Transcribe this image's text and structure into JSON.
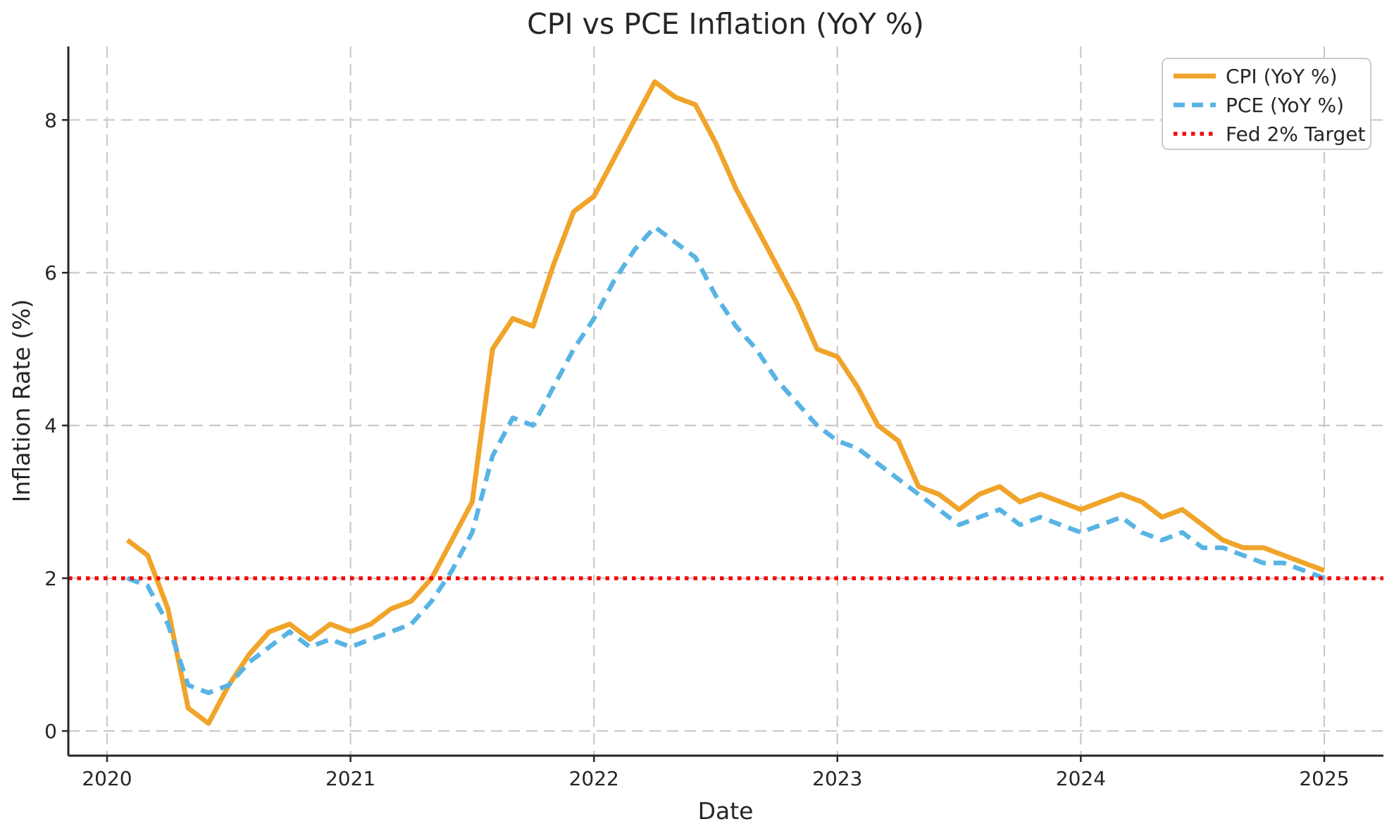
{
  "title": "CPI vs PCE Inflation (YoY %)",
  "chart_data": {
    "type": "line",
    "title": "CPI vs PCE Inflation (YoY %)",
    "xlabel": "Date",
    "ylabel": "Inflation Rate (%)",
    "grid": true,
    "background": "#ffffff",
    "x_tick_labels": [
      "2020",
      "2021",
      "2022",
      "2023",
      "2024",
      "2025"
    ],
    "x_tick_years": [
      2020,
      2021,
      2022,
      2023,
      2024,
      2025
    ],
    "y_tick_labels": [
      "0",
      "2",
      "4",
      "6",
      "8"
    ],
    "y_ticks": [
      0,
      2,
      4,
      6,
      8
    ],
    "ylim": [
      -0.32,
      8.92
    ],
    "xlim_years": [
      2019.84,
      2025.25
    ],
    "x_months": [
      "2020-01",
      "2020-02",
      "2020-03",
      "2020-04",
      "2020-05",
      "2020-06",
      "2020-07",
      "2020-08",
      "2020-09",
      "2020-10",
      "2020-11",
      "2020-12",
      "2021-01",
      "2021-02",
      "2021-03",
      "2021-04",
      "2021-05",
      "2021-06",
      "2021-07",
      "2021-08",
      "2021-09",
      "2021-10",
      "2021-11",
      "2021-12",
      "2022-01",
      "2022-02",
      "2022-03",
      "2022-04",
      "2022-05",
      "2022-06",
      "2022-07",
      "2022-08",
      "2022-09",
      "2022-10",
      "2022-11",
      "2022-12",
      "2023-01",
      "2023-02",
      "2023-03",
      "2023-04",
      "2023-05",
      "2023-06",
      "2023-07",
      "2023-08",
      "2023-09",
      "2023-10",
      "2023-11",
      "2023-12",
      "2024-01",
      "2024-02",
      "2024-03",
      "2024-04",
      "2024-05",
      "2024-06",
      "2024-07",
      "2024-08",
      "2024-09",
      "2024-10",
      "2024-11",
      "2024-12"
    ],
    "series": [
      {
        "name": "CPI (YoY %)",
        "color": "#F0A42A",
        "style": "solid",
        "values": [
          2.5,
          2.3,
          1.6,
          0.3,
          0.1,
          0.6,
          1.0,
          1.3,
          1.4,
          1.2,
          1.4,
          1.3,
          1.4,
          1.6,
          1.7,
          2.0,
          2.5,
          3.0,
          5.0,
          5.4,
          5.3,
          6.1,
          6.8,
          7.0,
          7.5,
          8.0,
          8.5,
          8.3,
          8.2,
          7.7,
          7.1,
          6.6,
          6.1,
          5.6,
          5.0,
          4.9,
          4.5,
          4.0,
          3.8,
          3.2,
          3.1,
          2.9,
          3.1,
          3.2,
          3.0,
          3.1,
          3.0,
          2.9,
          3.0,
          3.1,
          3.0,
          2.8,
          2.9,
          2.7,
          2.5,
          2.4,
          2.4,
          2.3,
          2.2,
          2.1
        ]
      },
      {
        "name": "PCE (YoY %)",
        "color": "#58B4E4",
        "style": "dashed",
        "values": [
          2.0,
          1.9,
          1.4,
          0.6,
          0.5,
          0.6,
          0.9,
          1.1,
          1.3,
          1.1,
          1.2,
          1.1,
          1.2,
          1.3,
          1.4,
          1.7,
          2.1,
          2.6,
          3.6,
          4.1,
          4.0,
          4.5,
          5.0,
          5.4,
          5.9,
          6.3,
          6.6,
          6.4,
          6.2,
          5.7,
          5.3,
          5.0,
          4.6,
          4.3,
          4.0,
          3.8,
          3.7,
          3.5,
          3.3,
          3.1,
          2.9,
          2.7,
          2.8,
          2.9,
          2.7,
          2.8,
          2.7,
          2.6,
          2.7,
          2.8,
          2.6,
          2.5,
          2.6,
          2.4,
          2.4,
          2.3,
          2.2,
          2.2,
          2.1,
          2.0
        ]
      }
    ],
    "target_line": {
      "label": "Fed 2% Target",
      "value": 2.0,
      "color": "#F40000",
      "style": "dotted"
    },
    "legend": {
      "position": "upper right",
      "entries": [
        "CPI (YoY %)",
        "PCE (YoY %)",
        "Fed 2% Target"
      ]
    },
    "grid_color": "#c9c9c9",
    "spine_color": "#262626",
    "text_color": "#262626"
  }
}
